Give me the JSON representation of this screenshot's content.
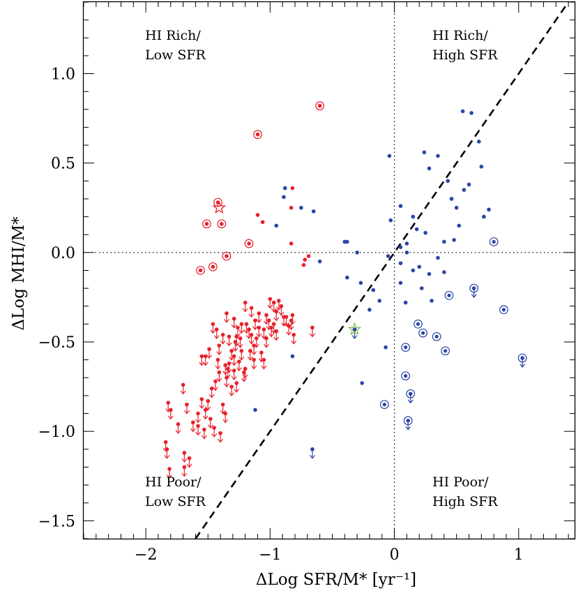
{
  "chart_data": {
    "type": "scatter",
    "xlabel": "ΔLog SFR/M* [yr⁻¹]",
    "ylabel": "ΔLog MHI/M*",
    "xlim": [
      -2.5,
      1.45
    ],
    "ylim": [
      -1.6,
      1.4
    ],
    "x_ticks": [
      -2,
      -1,
      0,
      1
    ],
    "x_tick_labels": [
      "−2",
      "−1",
      "0",
      "1"
    ],
    "y_ticks": [
      -1.5,
      -1.0,
      -0.5,
      0.0,
      0.5,
      1.0
    ],
    "y_tick_labels": [
      "−1.5",
      "−1.0",
      "−0.5",
      "0.0",
      "0.5",
      "1.0"
    ],
    "x_minor_step": 0.1,
    "y_minor_step": 0.1,
    "grid": false,
    "reference_lines": [
      {
        "type": "vertical",
        "x": 0,
        "style": "dotted"
      },
      {
        "type": "horizontal",
        "y": 0,
        "style": "dotted"
      },
      {
        "type": "diagonal",
        "slope": 1,
        "intercept": 0,
        "style": "dashed"
      }
    ],
    "quadrant_labels": {
      "top_left": [
        "HI Rich/",
        "Low SFR"
      ],
      "top_right": [
        "HI Rich/",
        "High SFR"
      ],
      "bottom_left": [
        "HI Poor/",
        "Low SFR"
      ],
      "bottom_right": [
        "HI Poor/",
        "High SFR"
      ]
    },
    "colors": {
      "red": "#e8202a",
      "blue": "#2b45a6",
      "star_green": "#7ec050",
      "line": "#000000"
    },
    "series": [
      {
        "color": "red",
        "detections": [
          [
            -0.6,
            0.82
          ],
          [
            -1.1,
            0.66
          ],
          [
            -1.42,
            0.28
          ],
          [
            -1.39,
            0.16
          ],
          [
            -1.51,
            0.16
          ],
          [
            -1.35,
            -0.02
          ],
          [
            -1.46,
            -0.08
          ],
          [
            -1.56,
            -0.1
          ],
          [
            -1.17,
            0.05
          ],
          [
            -0.82,
            0.36
          ],
          [
            -0.83,
            0.25
          ],
          [
            -0.83,
            0.05
          ],
          [
            -1.1,
            0.21
          ],
          [
            -1.06,
            0.17
          ],
          [
            -0.72,
            -0.04
          ],
          [
            -0.73,
            -0.07
          ],
          [
            -0.69,
            -0.02
          ]
        ],
        "circled": [
          [
            -0.6,
            0.82
          ],
          [
            -1.1,
            0.66
          ],
          [
            -1.42,
            0.28
          ],
          [
            -1.39,
            0.16
          ],
          [
            -1.51,
            0.16
          ],
          [
            -1.35,
            -0.02
          ],
          [
            -1.46,
            -0.08
          ],
          [
            -1.56,
            -0.1
          ],
          [
            -1.17,
            0.05
          ]
        ],
        "stars": [
          [
            -1.41,
            0.25
          ]
        ],
        "upper_limits": [
          [
            -1.82,
            -0.84
          ],
          [
            -1.8,
            -0.88
          ],
          [
            -1.84,
            -1.06
          ],
          [
            -1.83,
            -1.1
          ],
          [
            -1.74,
            -0.96
          ],
          [
            -1.69,
            -1.12
          ],
          [
            -1.65,
            -1.15
          ],
          [
            -1.81,
            -1.21
          ],
          [
            -1.7,
            -0.74
          ],
          [
            -1.62,
            -0.95
          ],
          [
            -1.67,
            -0.85
          ],
          [
            -1.58,
            -0.9
          ],
          [
            -1.55,
            -0.82
          ],
          [
            -1.52,
            -0.88
          ],
          [
            -1.5,
            -0.83
          ],
          [
            -1.47,
            -0.76
          ],
          [
            -1.44,
            -0.72
          ],
          [
            -1.41,
            -0.67
          ],
          [
            -1.38,
            -0.85
          ],
          [
            -1.36,
            -0.9
          ],
          [
            -1.33,
            -0.62
          ],
          [
            -1.31,
            -0.75
          ],
          [
            -1.55,
            -0.58
          ],
          [
            -1.52,
            -0.58
          ],
          [
            -1.49,
            -0.54
          ],
          [
            -1.46,
            -0.4
          ],
          [
            -1.43,
            -0.43
          ],
          [
            -1.41,
            -0.52
          ],
          [
            -1.38,
            -0.46
          ],
          [
            -1.36,
            -0.63
          ],
          [
            -1.34,
            -0.65
          ],
          [
            -1.31,
            -0.55
          ],
          [
            -1.29,
            -0.58
          ],
          [
            -1.27,
            -0.47
          ],
          [
            -1.25,
            -0.61
          ],
          [
            -1.23,
            -0.55
          ],
          [
            -1.21,
            -0.67
          ],
          [
            -1.19,
            -0.4
          ],
          [
            -1.17,
            -0.43
          ],
          [
            -1.15,
            -0.46
          ],
          [
            -1.13,
            -0.52
          ],
          [
            -1.11,
            -0.48
          ],
          [
            -1.09,
            -0.42
          ],
          [
            -1.07,
            -0.56
          ],
          [
            -1.05,
            -0.6
          ],
          [
            -1.03,
            -0.48
          ],
          [
            -1.01,
            -0.38
          ],
          [
            -0.99,
            -0.42
          ],
          [
            -0.97,
            -0.4
          ],
          [
            -0.95,
            -0.44
          ],
          [
            -0.93,
            -0.27
          ],
          [
            -0.91,
            -0.3
          ],
          [
            -0.89,
            -0.36
          ],
          [
            -0.87,
            -0.36
          ],
          [
            -0.85,
            -0.41
          ],
          [
            -0.83,
            -0.38
          ],
          [
            -0.81,
            -0.46
          ],
          [
            -1.35,
            -0.34
          ],
          [
            -1.29,
            -0.37
          ],
          [
            -1.26,
            -0.42
          ],
          [
            -1.23,
            -0.4
          ],
          [
            -1.2,
            -0.28
          ],
          [
            -1.15,
            -0.31
          ],
          [
            -1.12,
            -0.38
          ],
          [
            -1.09,
            -0.34
          ],
          [
            -1.05,
            -0.43
          ],
          [
            -1.03,
            -0.35
          ],
          [
            -1.0,
            -0.26
          ],
          [
            -0.97,
            -0.28
          ],
          [
            -0.95,
            -0.33
          ],
          [
            -0.82,
            -0.35
          ],
          [
            -0.66,
            -0.42
          ],
          [
            -1.42,
            -0.6
          ],
          [
            -1.35,
            -0.7
          ],
          [
            -1.29,
            -0.66
          ],
          [
            -1.27,
            -0.73
          ],
          [
            -1.2,
            -0.65
          ],
          [
            -1.16,
            -0.55
          ],
          [
            -1.13,
            -0.6
          ],
          [
            -1.69,
            -1.2
          ],
          [
            -1.58,
            -0.97
          ],
          [
            -1.53,
            -0.99
          ],
          [
            -1.48,
            -0.93
          ],
          [
            -1.45,
            -0.98
          ],
          [
            -1.4,
            -1.01
          ],
          [
            -1.33,
            -0.47
          ],
          [
            -1.28,
            -0.5
          ],
          [
            -1.24,
            -0.48
          ]
        ]
      },
      {
        "color": "blue",
        "detections": [
          [
            -0.88,
            0.36
          ],
          [
            -0.89,
            0.31
          ],
          [
            -0.75,
            0.25
          ],
          [
            -0.65,
            0.23
          ],
          [
            -0.95,
            0.15
          ],
          [
            -0.4,
            0.06
          ],
          [
            -0.38,
            0.06
          ],
          [
            -0.3,
            0.0
          ],
          [
            -0.6,
            -0.05
          ],
          [
            -0.38,
            -0.14
          ],
          [
            -0.27,
            -0.17
          ],
          [
            -0.2,
            -0.32
          ],
          [
            -0.12,
            -0.27
          ],
          [
            -0.17,
            -0.21
          ],
          [
            -0.05,
            -0.02
          ],
          [
            -0.03,
            0.18
          ],
          [
            0.05,
            0.03
          ],
          [
            0.1,
            0.05
          ],
          [
            0.05,
            -0.06
          ],
          [
            0.1,
            0.0
          ],
          [
            0.15,
            -0.1
          ],
          [
            0.2,
            -0.08
          ],
          [
            0.22,
            -0.2
          ],
          [
            0.28,
            -0.12
          ],
          [
            0.3,
            -0.27
          ],
          [
            0.4,
            -0.11
          ],
          [
            0.55,
            0.79
          ],
          [
            0.62,
            0.78
          ],
          [
            0.24,
            0.56
          ],
          [
            0.28,
            0.47
          ],
          [
            0.35,
            0.54
          ],
          [
            0.43,
            0.4
          ],
          [
            0.46,
            0.3
          ],
          [
            0.5,
            0.25
          ],
          [
            0.52,
            0.15
          ],
          [
            0.56,
            0.35
          ],
          [
            0.6,
            0.38
          ],
          [
            0.68,
            0.62
          ],
          [
            0.7,
            0.48
          ],
          [
            0.72,
            0.2
          ],
          [
            0.76,
            0.24
          ],
          [
            -0.04,
            0.54
          ],
          [
            0.05,
            0.26
          ],
          [
            0.15,
            0.2
          ],
          [
            0.18,
            0.13
          ],
          [
            0.25,
            0.11
          ],
          [
            0.35,
            -0.03
          ],
          [
            0.4,
            0.06
          ],
          [
            0.48,
            0.07
          ],
          [
            -0.82,
            -0.58
          ],
          [
            -0.26,
            -0.73
          ],
          [
            -1.12,
            -0.88
          ],
          [
            -0.07,
            -0.53
          ],
          [
            0.09,
            -0.28
          ],
          [
            0.05,
            -0.17
          ]
        ],
        "circled": [
          [
            0.8,
            0.06
          ],
          [
            0.64,
            -0.2
          ],
          [
            0.44,
            -0.24
          ],
          [
            0.88,
            -0.32
          ],
          [
            0.19,
            -0.4
          ],
          [
            0.23,
            -0.45
          ],
          [
            0.34,
            -0.47
          ],
          [
            0.09,
            -0.53
          ],
          [
            0.41,
            -0.55
          ],
          [
            1.03,
            -0.59
          ],
          [
            0.09,
            -0.69
          ],
          [
            0.13,
            -0.79
          ],
          [
            -0.08,
            -0.85
          ],
          [
            0.11,
            -0.94
          ]
        ],
        "upper_limits": [
          [
            0.64,
            -0.2
          ],
          [
            1.03,
            -0.59
          ],
          [
            0.13,
            -0.79
          ],
          [
            0.11,
            -0.94
          ],
          [
            -0.66,
            -1.1
          ],
          [
            -0.32,
            -0.43
          ]
        ]
      },
      {
        "color": "star_green",
        "stars": [
          [
            -0.32,
            -0.43
          ]
        ]
      }
    ]
  }
}
